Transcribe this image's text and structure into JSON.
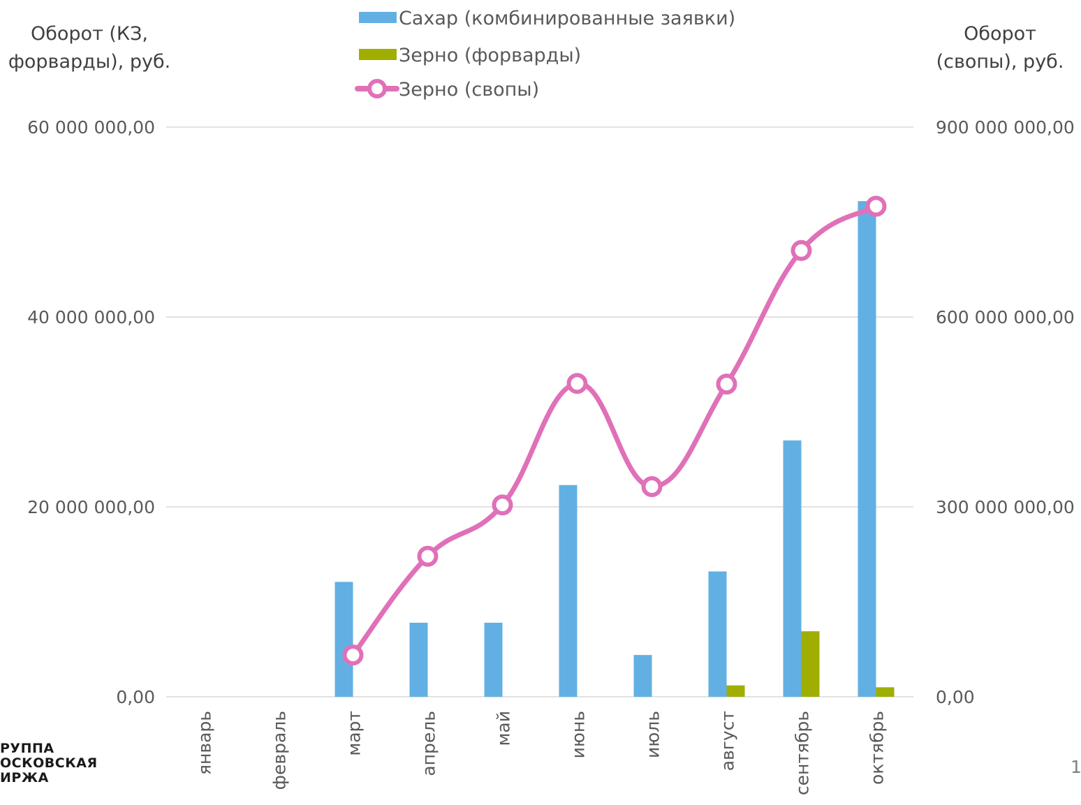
{
  "chart_data": {
    "type": "bar",
    "categories": [
      "январь",
      "февраль",
      "март",
      "апрель",
      "май",
      "июнь",
      "июль",
      "август",
      "сентябрь",
      "октябрь"
    ],
    "series": [
      {
        "name": "Сахар (комбинированные заявки)",
        "type": "bar",
        "axis": "left",
        "color": "#62B0E3",
        "values": [
          0,
          0,
          12100000,
          7800000,
          7800000,
          22300000,
          4400000,
          13200000,
          27000000,
          52200000
        ]
      },
      {
        "name": "Зерно (форварды)",
        "type": "bar",
        "axis": "left",
        "color": "#9FAE00",
        "values": [
          0,
          0,
          0,
          0,
          0,
          0,
          0,
          1200000,
          6900000,
          1000000
        ]
      },
      {
        "name": "Зерно (свопы)",
        "type": "line",
        "axis": "right",
        "color": "#E070B8",
        "values": [
          null,
          null,
          66000000,
          222000000,
          303000000,
          495000000,
          332000000,
          494000000,
          705000000,
          775000000
        ]
      }
    ],
    "y_left": {
      "title": "Оборот (КЗ, форварды), руб.",
      "title_lines": [
        "Оборот (КЗ,",
        "форварды), руб."
      ],
      "ylim": [
        0,
        60000000
      ],
      "ticks": [
        0,
        20000000,
        40000000,
        60000000
      ],
      "tick_labels": [
        "0,00",
        "20 000 000,00",
        "40 000 000,00",
        "60 000 000,00"
      ]
    },
    "y_right": {
      "title": "Оборот (свопы), руб.",
      "title_lines": [
        "Оборот",
        "(свопы), руб."
      ],
      "ylim": [
        0,
        900000000
      ],
      "ticks": [
        0,
        300000000,
        600000000,
        900000000
      ],
      "tick_labels": [
        "0,00",
        "300 000 000,00",
        "600 000 000,00",
        "900 000 000,00"
      ]
    },
    "grid": true,
    "legend_position": "top-center"
  },
  "logo": {
    "lines": [
      "РУППА",
      "ОСКОВСКАЯ",
      "ИРЖА"
    ]
  },
  "page_number": "1"
}
